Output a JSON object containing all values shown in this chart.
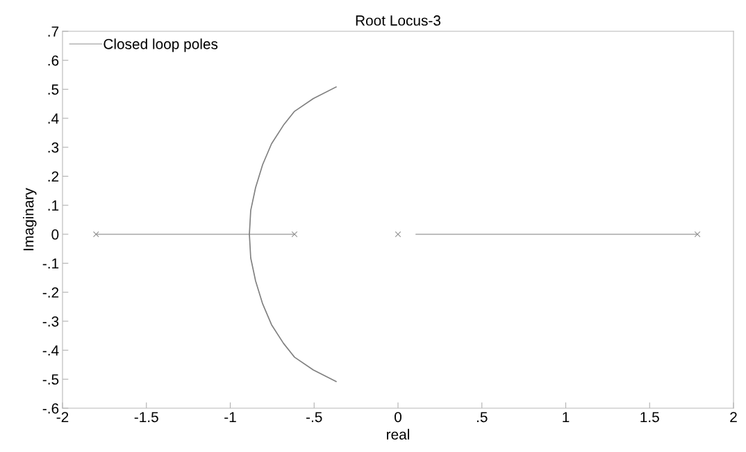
{
  "chart_data": {
    "type": "line",
    "title": "Root Locus-3",
    "xlabel": "real",
    "ylabel": "Imaginary",
    "series": [
      {
        "name": "Closed loop poles",
        "color": "#b4b4b4",
        "x": [
          -1.8,
          -0.617
        ],
        "values": [
          0,
          0
        ]
      },
      {
        "color": "#b4b4b4",
        "x": [
          0.108,
          1.785
        ],
        "values": [
          0,
          0
        ]
      },
      {
        "color": "#808080",
        "x": [
          -0.369,
          -0.505,
          -0.617,
          -0.683,
          -0.754,
          -0.807,
          -0.849,
          -0.878,
          -0.886,
          -0.878,
          -0.849,
          -0.807,
          -0.754,
          -0.683,
          -0.617,
          -0.505,
          -0.369
        ],
        "values": [
          0.508,
          0.468,
          0.424,
          0.376,
          0.312,
          0.24,
          0.161,
          0.082,
          0,
          -0.082,
          -0.161,
          -0.24,
          -0.312,
          -0.376,
          -0.424,
          -0.468,
          -0.508
        ]
      },
      {
        "type": "scatter",
        "marker": "cross",
        "color": "#909090",
        "x": [
          -1.8,
          -0.617,
          0,
          1.785
        ],
        "values": [
          0,
          0,
          0,
          0
        ]
      }
    ],
    "xlim": [
      -2,
      2
    ],
    "ylim": [
      -0.6,
      0.7
    ],
    "xticks": [
      {
        "value": -2,
        "label": "-2"
      },
      {
        "value": -1.5,
        "label": "-1.5"
      },
      {
        "value": -1,
        "label": "-1"
      },
      {
        "value": -0.5,
        "label": "-.5"
      },
      {
        "value": 0,
        "label": "0"
      },
      {
        "value": 0.5,
        "label": ".5"
      },
      {
        "value": 1,
        "label": "1"
      },
      {
        "value": 1.5,
        "label": "1.5"
      },
      {
        "value": 2,
        "label": "2"
      }
    ],
    "yticks": [
      {
        "value": -0.6,
        "label": "-.6"
      },
      {
        "value": -0.5,
        "label": "-.5"
      },
      {
        "value": -0.4,
        "label": "-.4"
      },
      {
        "value": -0.3,
        "label": "-.3"
      },
      {
        "value": -0.2,
        "label": "-.2"
      },
      {
        "value": -0.1,
        "label": "-.1"
      },
      {
        "value": 0,
        "label": "0"
      },
      {
        "value": 0.1,
        "label": ".1"
      },
      {
        "value": 0.2,
        "label": ".2"
      },
      {
        "value": 0.3,
        "label": ".3"
      },
      {
        "value": 0.4,
        "label": ".4"
      },
      {
        "value": 0.5,
        "label": ".5"
      },
      {
        "value": 0.6,
        "label": ".6"
      },
      {
        "value": 0.7,
        "label": ".7"
      }
    ],
    "grid": false,
    "legend": "top left"
  }
}
